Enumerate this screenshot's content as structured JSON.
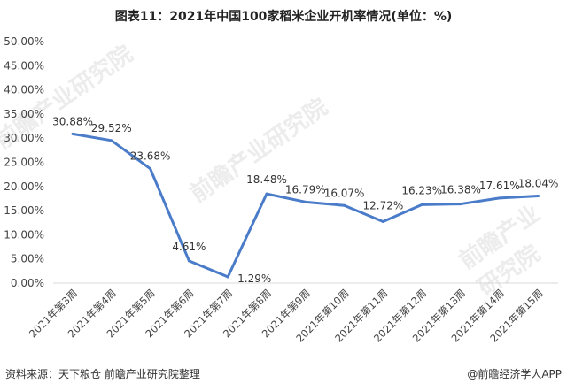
{
  "chart_data": {
    "type": "line",
    "title": "图表11：2021年中国100家稻米企业开机率情况(单位：%)",
    "categories": [
      "2021年第3周",
      "2021年第4周",
      "2021年第5周",
      "2021年第6周",
      "2021年第7周",
      "2021年第8周",
      "2021年第9周",
      "2021年第10周",
      "2021年第11周",
      "2021年第12周",
      "2021年第13周",
      "2021年第14周",
      "2021年第15周"
    ],
    "values": [
      30.88,
      29.52,
      23.68,
      4.61,
      1.29,
      18.48,
      16.79,
      16.07,
      12.72,
      16.23,
      16.38,
      17.61,
      18.04
    ],
    "data_labels": [
      "30.88%",
      "29.52%",
      "23.68%",
      "4.61%",
      "1.29%",
      "18.48%",
      "16.79%",
      "16.07%",
      "12.72%",
      "16.23%",
      "16.38%",
      "17.61%",
      "18.04%"
    ],
    "yticks": [
      "0.00%",
      "5.00%",
      "10.00%",
      "15.00%",
      "20.00%",
      "25.00%",
      "30.00%",
      "35.00%",
      "40.00%",
      "45.00%",
      "50.00%"
    ],
    "ylim": [
      0,
      50
    ],
    "grid": false,
    "line_color": "#4a7cc9"
  },
  "source": "资料来源：天下粮仓 前瞻产业研究院整理",
  "credit": "@前瞻经济学人APP",
  "watermark": "前瞻产业研究院"
}
